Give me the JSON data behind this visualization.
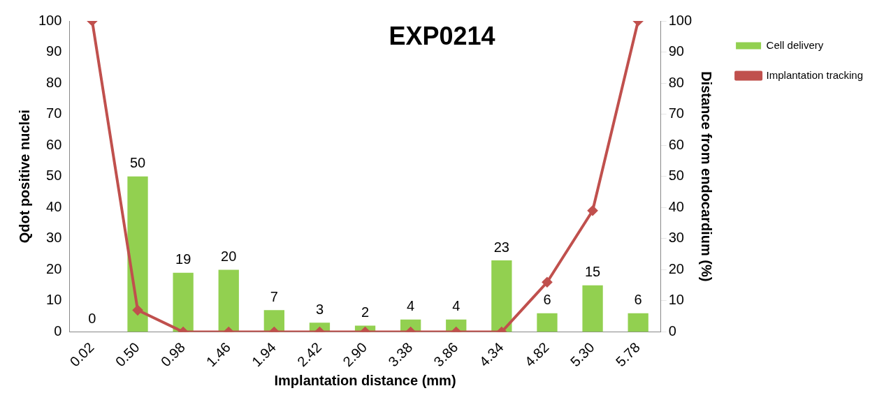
{
  "chart_data": {
    "type": "bar",
    "title": "EXP0214",
    "xlabel": "Implantation distance (mm)",
    "ylabel": "Qdot positive nuclei",
    "y2label": "Distance from endocardium (%)",
    "categories": [
      "0.02",
      "0.50",
      "0.98",
      "1.46",
      "1.94",
      "2.42",
      "2.90",
      "3.38",
      "3.86",
      "4.34",
      "4.82",
      "5.30",
      "5.78"
    ],
    "series": [
      {
        "name": "Cell delivery",
        "type": "bar",
        "color": "#92d050",
        "values": [
          0,
          50,
          19,
          20,
          7,
          3,
          2,
          4,
          4,
          23,
          6,
          15,
          6
        ],
        "data_labels": true
      },
      {
        "name": "Implantation tracking",
        "type": "line",
        "axis": "y2",
        "color": "#c0504d",
        "marker": "diamond",
        "values": [
          100,
          7,
          0,
          0,
          0,
          0,
          0,
          0,
          0,
          0,
          16,
          39,
          100
        ]
      }
    ],
    "ylim": [
      0,
      100
    ],
    "yticks": [
      0,
      10,
      20,
      30,
      40,
      50,
      60,
      70,
      80,
      90,
      100
    ],
    "y2lim": [
      0,
      100
    ],
    "y2ticks": [
      0,
      10,
      20,
      30,
      40,
      50,
      60,
      70,
      80,
      90,
      100
    ],
    "grid": false,
    "legend": "top right"
  }
}
